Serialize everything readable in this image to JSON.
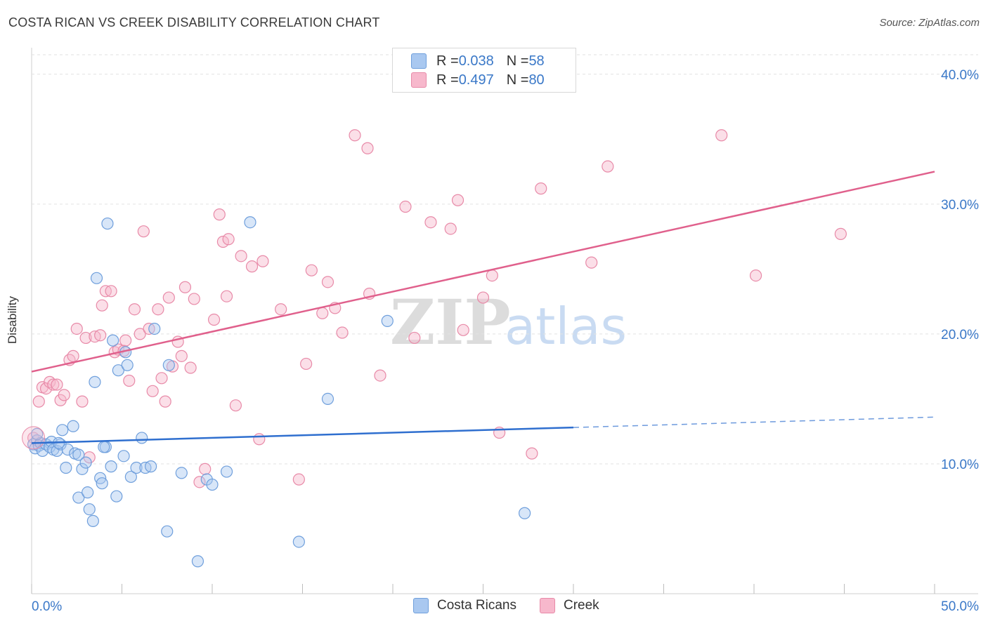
{
  "title": "COSTA RICAN VS CREEK DISABILITY CORRELATION CHART",
  "source": "Source: ZipAtlas.com",
  "watermark": {
    "zip": "ZIP",
    "atlas": "atlas"
  },
  "legend_top": {
    "rows": [
      {
        "r_label": "R = ",
        "r_value": "0.038",
        "n_label": "N = ",
        "n_value": "58"
      },
      {
        "r_label": "R = ",
        "r_value": "0.497",
        "n_label": "N = ",
        "n_value": "80"
      }
    ]
  },
  "legend_bottom": [
    "Costa Ricans",
    "Creek"
  ],
  "chart_data": {
    "type": "scatter",
    "title": "COSTA RICAN VS CREEK DISABILITY CORRELATION CHART",
    "xlabel": "",
    "ylabel": "Disability",
    "xlim": [
      0,
      50
    ],
    "ylim": [
      0,
      41.5
    ],
    "x_tick_labels": [
      "0.0%",
      "50.0%"
    ],
    "y_ticks": [
      10,
      20,
      30,
      40
    ],
    "y_tick_labels": [
      "10.0%",
      "20.0%",
      "30.0%",
      "40.0%"
    ],
    "grid": true,
    "legend_position": "top-center",
    "colors": {
      "costa_ricans_fill": "#a9c8f0",
      "costa_ricans_line": "#2f6fcf",
      "creek_fill": "#f7b8cc",
      "creek_line": "#e0608c",
      "tick_label": "#3a78c8"
    },
    "series": [
      {
        "name": "Costa Ricans",
        "trend": {
          "x": [
            0,
            30
          ],
          "y": [
            11.6,
            12.8
          ],
          "dashed_to": [
            50,
            13.6
          ]
        },
        "points": [
          [
            0.1,
            11.5
          ],
          [
            0.2,
            11.2
          ],
          [
            0.3,
            11.8
          ],
          [
            0.4,
            11.4
          ],
          [
            0.5,
            11.6
          ],
          [
            0.6,
            11.0
          ],
          [
            0.8,
            11.5
          ],
          [
            1.0,
            11.3
          ],
          [
            1.1,
            11.7
          ],
          [
            1.2,
            11.1
          ],
          [
            1.4,
            11.0
          ],
          [
            1.6,
            11.5
          ],
          [
            1.7,
            12.6
          ],
          [
            1.9,
            9.7
          ],
          [
            2.0,
            11.1
          ],
          [
            2.3,
            12.9
          ],
          [
            2.4,
            10.8
          ],
          [
            2.6,
            7.4
          ],
          [
            2.6,
            10.7
          ],
          [
            2.8,
            9.6
          ],
          [
            3.0,
            10.1
          ],
          [
            3.1,
            7.8
          ],
          [
            3.2,
            6.5
          ],
          [
            3.4,
            5.6
          ],
          [
            3.5,
            16.3
          ],
          [
            3.6,
            24.3
          ],
          [
            3.8,
            8.9
          ],
          [
            3.9,
            8.5
          ],
          [
            4.1,
            11.3
          ],
          [
            4.2,
            28.5
          ],
          [
            4.4,
            9.8
          ],
          [
            4.5,
            19.5
          ],
          [
            4.7,
            7.5
          ],
          [
            4.8,
            17.2
          ],
          [
            5.1,
            10.6
          ],
          [
            5.2,
            18.6
          ],
          [
            5.3,
            17.6
          ],
          [
            5.5,
            9.0
          ],
          [
            5.8,
            9.7
          ],
          [
            6.1,
            12.0
          ],
          [
            6.3,
            9.7
          ],
          [
            6.6,
            9.8
          ],
          [
            6.8,
            20.4
          ],
          [
            7.5,
            4.8
          ],
          [
            7.6,
            17.6
          ],
          [
            8.3,
            9.3
          ],
          [
            9.2,
            2.5
          ],
          [
            9.7,
            8.8
          ],
          [
            10.0,
            8.4
          ],
          [
            10.8,
            9.4
          ],
          [
            12.1,
            28.6
          ],
          [
            14.8,
            4.0
          ],
          [
            16.4,
            15.0
          ],
          [
            19.7,
            21.0
          ],
          [
            27.3,
            6.2
          ],
          [
            0.3,
            12.3
          ],
          [
            1.5,
            11.6
          ],
          [
            4.0,
            11.3
          ]
        ]
      },
      {
        "name": "Creek",
        "trend": {
          "x": [
            0,
            50
          ],
          "y": [
            17.1,
            32.5
          ]
        },
        "points": [
          [
            0.1,
            12.0
          ],
          [
            0.4,
            14.8
          ],
          [
            0.6,
            15.9
          ],
          [
            0.8,
            15.8
          ],
          [
            1.0,
            16.3
          ],
          [
            1.2,
            16.1
          ],
          [
            1.4,
            16.1
          ],
          [
            1.6,
            14.9
          ],
          [
            1.8,
            15.3
          ],
          [
            2.1,
            18.0
          ],
          [
            2.3,
            18.3
          ],
          [
            2.5,
            20.4
          ],
          [
            2.8,
            14.8
          ],
          [
            3.0,
            19.7
          ],
          [
            3.2,
            10.5
          ],
          [
            3.5,
            19.8
          ],
          [
            3.8,
            19.9
          ],
          [
            3.9,
            22.2
          ],
          [
            4.1,
            23.3
          ],
          [
            4.4,
            23.3
          ],
          [
            4.6,
            18.6
          ],
          [
            4.8,
            18.8
          ],
          [
            5.1,
            18.7
          ],
          [
            5.2,
            19.5
          ],
          [
            5.4,
            16.4
          ],
          [
            5.7,
            21.9
          ],
          [
            6.0,
            20.0
          ],
          [
            6.2,
            27.9
          ],
          [
            6.5,
            20.4
          ],
          [
            6.7,
            15.6
          ],
          [
            7.0,
            21.9
          ],
          [
            7.2,
            16.6
          ],
          [
            7.4,
            14.8
          ],
          [
            7.6,
            22.8
          ],
          [
            7.8,
            17.5
          ],
          [
            8.1,
            19.4
          ],
          [
            8.3,
            18.3
          ],
          [
            8.5,
            23.6
          ],
          [
            8.8,
            17.4
          ],
          [
            9.0,
            22.7
          ],
          [
            9.3,
            8.6
          ],
          [
            9.6,
            9.6
          ],
          [
            10.1,
            21.1
          ],
          [
            10.4,
            29.2
          ],
          [
            10.6,
            27.1
          ],
          [
            10.8,
            22.9
          ],
          [
            10.9,
            27.3
          ],
          [
            11.3,
            14.5
          ],
          [
            11.6,
            26.0
          ],
          [
            12.2,
            25.2
          ],
          [
            12.6,
            11.9
          ],
          [
            12.8,
            25.6
          ],
          [
            13.8,
            21.9
          ],
          [
            14.8,
            8.8
          ],
          [
            15.2,
            17.7
          ],
          [
            15.5,
            24.9
          ],
          [
            16.1,
            21.6
          ],
          [
            16.4,
            24.0
          ],
          [
            16.8,
            22.0
          ],
          [
            17.2,
            20.1
          ],
          [
            17.9,
            35.3
          ],
          [
            18.6,
            34.3
          ],
          [
            18.7,
            23.1
          ],
          [
            19.3,
            16.8
          ],
          [
            20.7,
            29.8
          ],
          [
            21.2,
            19.7
          ],
          [
            22.1,
            28.6
          ],
          [
            23.2,
            28.1
          ],
          [
            23.6,
            30.3
          ],
          [
            23.9,
            20.3
          ],
          [
            25.0,
            22.8
          ],
          [
            25.5,
            24.5
          ],
          [
            25.9,
            12.4
          ],
          [
            27.7,
            10.8
          ],
          [
            28.2,
            31.2
          ],
          [
            31.0,
            25.5
          ],
          [
            31.9,
            32.9
          ],
          [
            38.2,
            35.3
          ],
          [
            40.1,
            24.5
          ],
          [
            44.8,
            27.7
          ]
        ]
      }
    ]
  }
}
